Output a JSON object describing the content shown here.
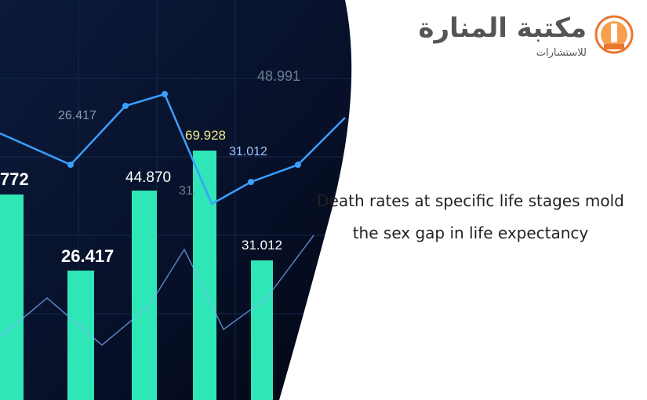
{
  "logo": {
    "name": "مكتبة المنارة",
    "tagline": "للاستشارات"
  },
  "title": "Death rates at specific life stages mold the sex gap in life expectancy",
  "photo": {
    "labels": [
      "772",
      "26.417",
      "44.870",
      "69.928",
      "31.012",
      "31.012",
      "26.417",
      "48.991",
      "31."
    ]
  }
}
